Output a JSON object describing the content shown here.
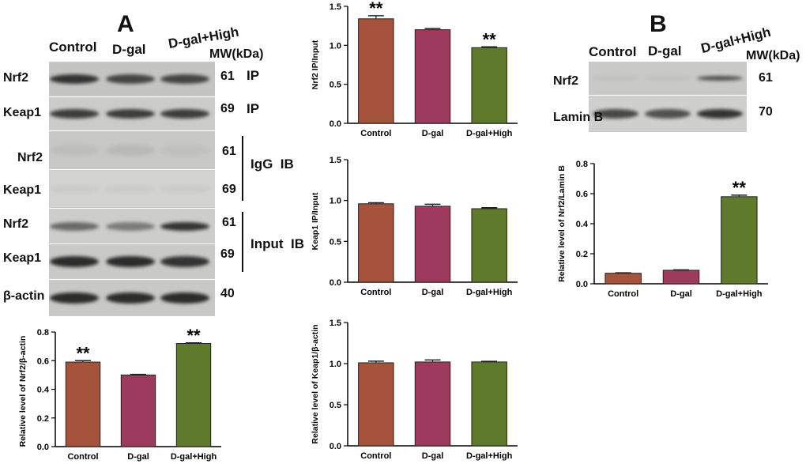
{
  "panel_a": {
    "letter": "A",
    "lanes": [
      "Control",
      "D-gal",
      "D-gal+High"
    ],
    "mw_header": "MW(kDa)",
    "rows": [
      {
        "label": "Nrf2",
        "mw": "61",
        "band_intensity": [
          0.85,
          0.75,
          0.75
        ]
      },
      {
        "label": "Keap1",
        "mw": "69",
        "band_intensity": [
          0.8,
          0.8,
          0.8
        ]
      },
      {
        "label": "Nrf2",
        "mw": "61",
        "band_intensity": [
          0.05,
          0.08,
          0.04
        ]
      },
      {
        "label": "Keap1",
        "mw": "69",
        "band_intensity": [
          0.04,
          0.04,
          0.04
        ]
      },
      {
        "label": "Nrf2",
        "mw": "61",
        "band_intensity": [
          0.55,
          0.45,
          0.85
        ]
      },
      {
        "label": "Keap1",
        "mw": "69",
        "band_intensity": [
          0.9,
          0.9,
          0.85
        ]
      },
      {
        "label": "β-actin",
        "mw": "40",
        "band_intensity": [
          0.9,
          0.9,
          0.9
        ]
      }
    ],
    "group_labels": {
      "ip1": "IP",
      "ip2": "IP",
      "igg": "IgG  IB",
      "input": "Input  IB"
    }
  },
  "panel_b": {
    "letter": "B",
    "lanes": [
      "Control",
      "D-gal",
      "D-gal+High"
    ],
    "mw_header": "MW(kDa)",
    "rows": [
      {
        "label": "Nrf2",
        "mw": "61",
        "band_intensity": [
          0.05,
          0.05,
          0.7
        ]
      },
      {
        "label": "Lamin B",
        "mw": "70",
        "band_intensity": [
          0.75,
          0.7,
          0.85
        ]
      }
    ]
  },
  "colors": {
    "control": "#A5533A",
    "dgal": "#9E3A5E",
    "high": "#5E7A2A"
  },
  "chart_data": [
    {
      "id": "nrf2_actin",
      "type": "bar",
      "categories": [
        "Control",
        "D-gal",
        "D-gal+High"
      ],
      "values": [
        0.59,
        0.5,
        0.72
      ],
      "errors": [
        0.01,
        0.004,
        0.004
      ],
      "annotations": [
        "**",
        "",
        "**"
      ],
      "ylabel": "Relative level of Nrf2/β-actin",
      "ylim": [
        0.0,
        0.8
      ],
      "yticks": [
        "0.0",
        "0.2",
        "0.4",
        "0.6",
        "0.8"
      ]
    },
    {
      "id": "nrf2_ip",
      "type": "bar",
      "categories": [
        "Control",
        "D-gal",
        "D-gal+High"
      ],
      "values": [
        1.34,
        1.2,
        0.97
      ],
      "errors": [
        0.04,
        0.015,
        0.01
      ],
      "annotations": [
        "**",
        "",
        "**"
      ],
      "ylabel": "Nrf2 IP/Input",
      "ylim": [
        0.0,
        1.5
      ],
      "yticks": [
        "0.0",
        "0.5",
        "1.0",
        "1.5"
      ]
    },
    {
      "id": "keap1_ip",
      "type": "bar",
      "categories": [
        "Control",
        "D-gal",
        "D-gal+High"
      ],
      "values": [
        0.96,
        0.93,
        0.9
      ],
      "errors": [
        0.012,
        0.025,
        0.012
      ],
      "annotations": [
        "",
        "",
        ""
      ],
      "ylabel": "Keap1 IP/Input",
      "ylim": [
        0.0,
        1.5
      ],
      "yticks": [
        "0.0",
        "0.5",
        "1.0",
        "1.5"
      ]
    },
    {
      "id": "keap1_actin",
      "type": "bar",
      "categories": [
        "Control",
        "D-gal",
        "D-gal+High"
      ],
      "values": [
        1.01,
        1.02,
        1.02
      ],
      "errors": [
        0.02,
        0.025,
        0.008
      ],
      "annotations": [
        "",
        "",
        ""
      ],
      "ylabel": "Relative level of Keap1/β-actin",
      "ylim": [
        0.0,
        1.5
      ],
      "yticks": [
        "0.0",
        "0.5",
        "1.0",
        "1.5"
      ]
    },
    {
      "id": "nrf2_laminb",
      "type": "bar",
      "categories": [
        "Control",
        "D-gal",
        "D-gal+High"
      ],
      "values": [
        0.07,
        0.09,
        0.58
      ],
      "errors": [
        0.003,
        0.003,
        0.01
      ],
      "annotations": [
        "",
        "",
        "**"
      ],
      "ylabel": "Relative level of Nrf2/Lamin B",
      "ylim": [
        0.0,
        0.8
      ],
      "yticks": [
        "0.0",
        "0.2",
        "0.4",
        "0.6",
        "0.8"
      ]
    }
  ]
}
